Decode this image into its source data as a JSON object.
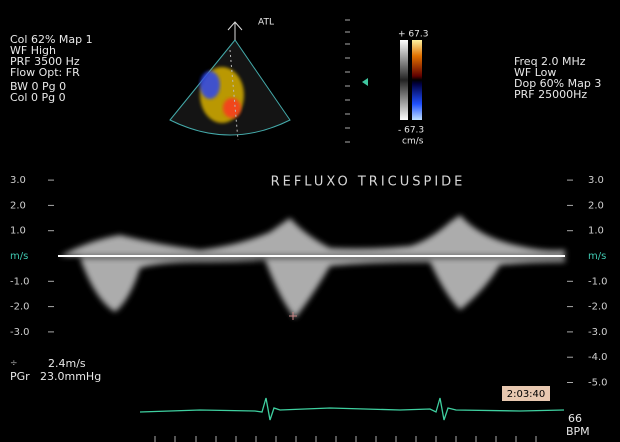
{
  "settings_left": [
    "Col 62%  Map 1",
    "WF High",
    "PRF 3500  Hz",
    "Flow Opt: FR"
  ],
  "settings_left_2": [
    "BW 0   Pg 0",
    "Col 0   Pg 0"
  ],
  "settings_right": [
    "Freq 2.0  MHz",
    "WF Low",
    "Dop 60%  Map 3",
    "PRF 25000Hz"
  ],
  "probe_label": "ATL",
  "color_bar": {
    "top": "+ 67.3",
    "bottom": "- 67.3",
    "unit": "cm/s"
  },
  "title": "REFLUXO  TRICUSPIDE",
  "scale_left": [
    "3.0",
    "2.0",
    "1.0",
    "m/s",
    "-1.0",
    "-2.0",
    "-3.0"
  ],
  "scale_right": [
    "3.0",
    "2.0",
    "1.0",
    "m/s",
    "-1.0",
    "-2.0",
    "-3.0",
    "-4.0",
    "-5.0"
  ],
  "measurement": {
    "velocity": "2.4m/s",
    "gradient_label": "PGr",
    "gradient": "23.0mmHg"
  },
  "time": "2:03:40",
  "heart_rate": {
    "value": "66",
    "unit": "BPM"
  }
}
